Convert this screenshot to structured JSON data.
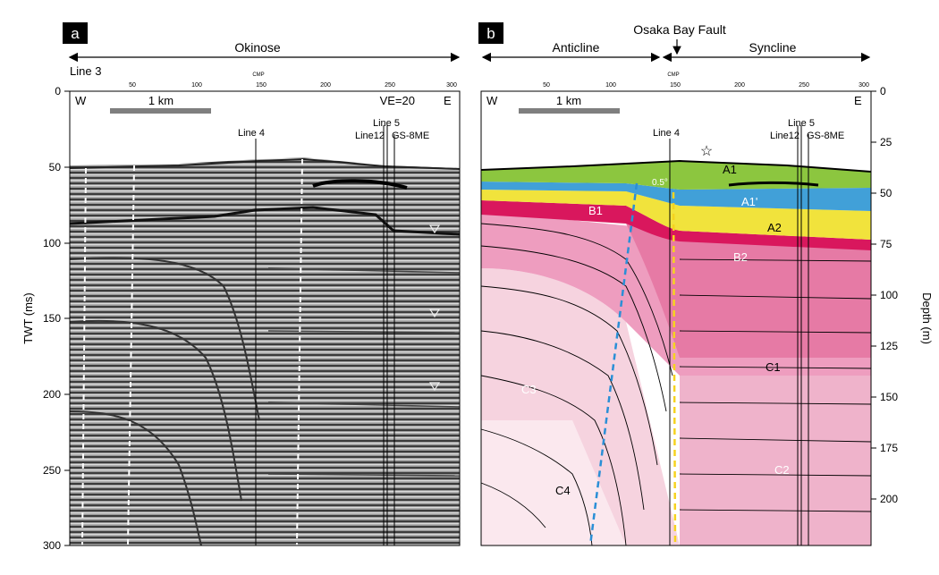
{
  "panel_a": {
    "letter": "a",
    "region_label": "Okinose",
    "line_label": "Line 3",
    "cmp_label": "CMP",
    "cmp_ticks": [
      "50",
      "100",
      "150",
      "200",
      "250",
      "300"
    ],
    "twt_ticks": [
      "0",
      "50",
      "100",
      "150",
      "200",
      "250",
      "300"
    ],
    "y_axis_label": "TWT (ms)",
    "west": "W",
    "east": "E",
    "scale_label": "1 km",
    "ve_label": "VE=20",
    "line4": "Line 4",
    "line5": "Line 5",
    "line12": "Line12",
    "gs": "GS-8ME"
  },
  "panel_b": {
    "letter": "b",
    "anticline_label": "Anticline",
    "syncline_label": "Syncline",
    "fault_label": "Osaka Bay Fault",
    "cmp_label": "CMP",
    "cmp_ticks": [
      "50",
      "100",
      "150",
      "200",
      "250",
      "300"
    ],
    "depth_ticks": [
      "0",
      "25",
      "50",
      "75",
      "100",
      "125",
      "150",
      "175",
      "200"
    ],
    "y_axis_label": "Depth (m)",
    "west": "W",
    "east": "E",
    "scale_label": "1 km",
    "line4": "Line 4",
    "line5": "Line 5",
    "line12": "Line12",
    "gs": "GS-8ME",
    "dip_label": "0.5°",
    "units": {
      "A1": "A1",
      "A1p": "A1'",
      "A2": "A2",
      "B1": "B1",
      "B2": "B2",
      "C1": "C1",
      "C2": "C2",
      "C3": "C3",
      "C4": "C4"
    },
    "colors": {
      "A1": "#8cc63f",
      "A1p": "#41a0d8",
      "A2": "#f1e33c",
      "B1": "#d9175d",
      "B2": "#e67aa5",
      "C1": "#ee9dbf",
      "C2": "#efb3cb",
      "C3": "#f6d3df",
      "C4": "#fbe8ee"
    }
  }
}
